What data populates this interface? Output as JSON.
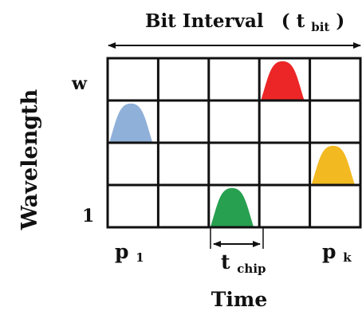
{
  "title": {
    "text": "Bit Interval",
    "paren_open": "(",
    "symbol": "t",
    "subscript": "bit",
    "paren_close": ")"
  },
  "y_axis": {
    "label": "Wavelength",
    "top_label": "w",
    "bottom_label": "1"
  },
  "x_axis": {
    "label": "Time",
    "first_label": {
      "base": "p",
      "sub": "1"
    },
    "last_label": {
      "base": "p",
      "sub": "k"
    },
    "chip_label": {
      "base": "t",
      "sub": "chip"
    }
  },
  "grid": {
    "columns": 5,
    "rows": 4
  },
  "pulses": [
    {
      "name": "pulse-blue",
      "column": 1,
      "row": 2,
      "color": "#8fb0d8"
    },
    {
      "name": "pulse-green",
      "column": 3,
      "row": 4,
      "color": "#27a050"
    },
    {
      "name": "pulse-red",
      "column": 4,
      "row": 1,
      "color": "#ec2626"
    },
    {
      "name": "pulse-yellow",
      "column": 5,
      "row": 3,
      "color": "#f2b921"
    }
  ]
}
